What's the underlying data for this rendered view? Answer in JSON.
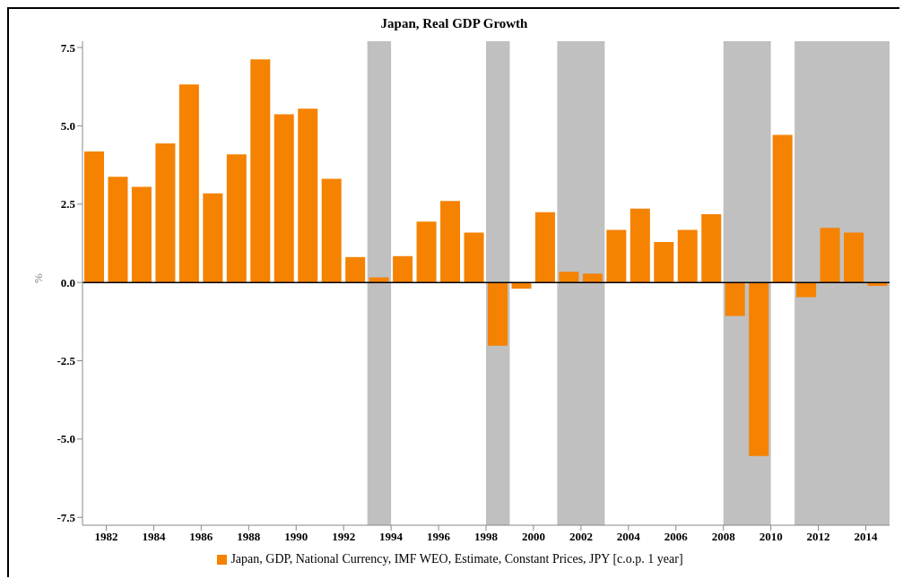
{
  "chart_data": {
    "type": "bar",
    "title": "Japan, Real GDP Growth",
    "ylabel": "%",
    "x": [
      1981.5,
      1982.5,
      1983.5,
      1984.5,
      1985.5,
      1986.5,
      1987.5,
      1988.5,
      1989.5,
      1990.5,
      1991.5,
      1992.5,
      1993.5,
      1994.5,
      1995.5,
      1996.5,
      1997.5,
      1998.5,
      1999.5,
      2000.5,
      2001.5,
      2002.5,
      2003.5,
      2004.5,
      2005.5,
      2006.5,
      2007.5,
      2008.5,
      2009.5,
      2010.5,
      2011.5,
      2012.5,
      2013.5,
      2014.5
    ],
    "series": [
      {
        "name": "Japan, GDP, National Currency, IMF WEO, Estimate, Constant Prices, JPY [c.o.p. 1 year]",
        "color": "#f58200",
        "values": [
          4.18,
          3.37,
          3.05,
          4.44,
          6.32,
          2.84,
          4.09,
          7.12,
          5.37,
          5.55,
          3.31,
          0.81,
          0.16,
          0.84,
          1.94,
          2.6,
          1.59,
          -2.02,
          -0.2,
          2.24,
          0.34,
          0.28,
          1.68,
          2.36,
          1.29,
          1.68,
          2.18,
          -1.07,
          -5.54,
          4.71,
          -0.47,
          1.74,
          1.59,
          -0.11
        ]
      }
    ],
    "xlim": [
      1981,
      2015
    ],
    "xticks": [
      1982,
      1984,
      1986,
      1988,
      1990,
      1992,
      1994,
      1996,
      1998,
      2000,
      2002,
      2004,
      2006,
      2008,
      2010,
      2012,
      2014
    ],
    "ylim": [
      -7.75,
      7.7
    ],
    "yticks": [
      {
        "value": -7.5,
        "label": "-7.5"
      },
      {
        "value": -5,
        "label": "-5.0"
      },
      {
        "value": -2.5,
        "label": "-2.5"
      },
      {
        "value": 0,
        "label": "0.0"
      },
      {
        "value": 2.5,
        "label": "2.5"
      },
      {
        "value": 5,
        "label": "5.0"
      },
      {
        "value": 7.5,
        "label": "7.5"
      }
    ],
    "bands": [
      {
        "axis": "x",
        "from": 1993,
        "to": 1994,
        "color": "#c0c0c0"
      },
      {
        "axis": "x",
        "from": 1998,
        "to": 1999,
        "color": "#c0c0c0"
      },
      {
        "axis": "x",
        "from": 2001,
        "to": 2003,
        "color": "#c0c0c0"
      },
      {
        "axis": "x",
        "from": 2008,
        "to": 2010,
        "color": "#c0c0c0"
      },
      {
        "axis": "x",
        "from": 2011,
        "to": 2015,
        "color": "#c0c0c0"
      }
    ],
    "ref_lines": [
      {
        "axis": "y",
        "value": 0,
        "color": "#000000"
      }
    ],
    "grid": false,
    "legend": "bottom"
  }
}
